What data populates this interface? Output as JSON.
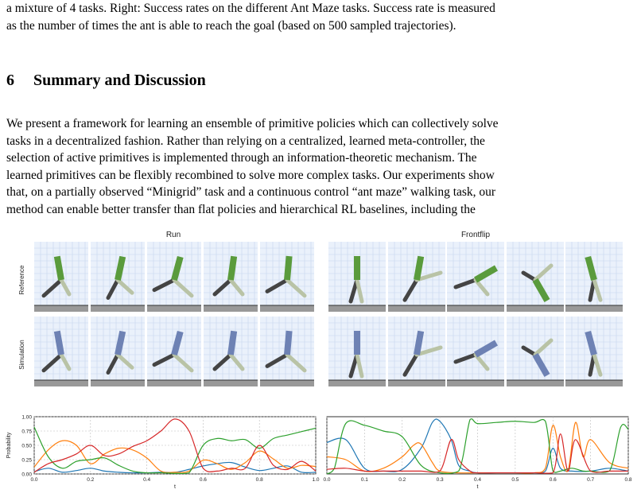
{
  "caption_lines": [
    "a mixture of 4 tasks. Right: Success rates on the different Ant Maze tasks. Success rate is measured",
    "as the number of times the ant is able to reach the goal (based on 500 sampled trajectories)."
  ],
  "section": {
    "number": "6",
    "title": "Summary and Discussion"
  },
  "paragraph_lines": [
    "We present a framework for learning an ensemble of primitive policies which can collectively solve",
    "tasks in a decentralized fashion. Rather than relying on a centralized, learned meta-controller, the",
    "selection of active primitives is implemented through an information-theoretic mechanism. The",
    "learned primitives can be flexibly recombined to solve more complex tasks. Our experiments show",
    "that, on a partially observed “Minigrid” task and a continuous control “ant maze” walking task, our",
    "method can enable better transfer than flat policies and hierarchical RL baselines, including the"
  ],
  "figure": {
    "panels": [
      {
        "title": "Run",
        "row_labels": [
          "Reference",
          "Simulation"
        ]
      },
      {
        "title": "Frontflip",
        "row_labels": []
      }
    ],
    "colors": {
      "reference": "#5a9b3c",
      "simulation": "#6e82b4",
      "dark": "#444444",
      "light": "#b9c3a6",
      "floor": "#999999"
    }
  },
  "chart_data": [
    {
      "type": "line",
      "title": "",
      "xlabel": "t",
      "ylabel": "Probability",
      "xlim": [
        0.0,
        1.0
      ],
      "ylim": [
        0.0,
        1.0
      ],
      "x_ticks": [
        "0.0",
        "0.2",
        "0.4",
        "0.6",
        "0.8",
        "1.0"
      ],
      "y_ticks": [
        "0.00",
        "0.25",
        "0.50",
        "0.75",
        "1.00"
      ],
      "grid": true,
      "series": [
        {
          "color": "#1f77b4",
          "x": [
            0,
            0.05,
            0.1,
            0.15,
            0.2,
            0.25,
            0.3,
            0.35,
            0.4,
            0.45,
            0.5,
            0.55,
            0.6,
            0.65,
            0.7,
            0.75,
            0.8,
            0.85,
            0.9,
            0.95,
            1.0
          ],
          "y": [
            0.04,
            0.1,
            0.03,
            0.06,
            0.1,
            0.05,
            0.03,
            0.02,
            0.02,
            0.03,
            0.03,
            0.08,
            0.14,
            0.18,
            0.2,
            0.12,
            0.06,
            0.1,
            0.14,
            0.03,
            0.03
          ]
        },
        {
          "color": "#ff7f0e",
          "x": [
            0,
            0.05,
            0.1,
            0.15,
            0.2,
            0.25,
            0.3,
            0.35,
            0.4,
            0.45,
            0.5,
            0.55,
            0.6,
            0.65,
            0.7,
            0.75,
            0.8,
            0.85,
            0.9,
            0.95,
            1.0
          ],
          "y": [
            0.12,
            0.42,
            0.58,
            0.5,
            0.18,
            0.35,
            0.45,
            0.42,
            0.28,
            0.05,
            0.03,
            0.05,
            0.24,
            0.18,
            0.08,
            0.2,
            0.4,
            0.26,
            0.1,
            0.15,
            0.13
          ]
        },
        {
          "color": "#2ca02c",
          "x": [
            0,
            0.05,
            0.1,
            0.15,
            0.2,
            0.25,
            0.3,
            0.35,
            0.4,
            0.45,
            0.5,
            0.55,
            0.6,
            0.65,
            0.7,
            0.75,
            0.8,
            0.85,
            0.9,
            0.95,
            1.0
          ],
          "y": [
            0.82,
            0.3,
            0.1,
            0.22,
            0.25,
            0.28,
            0.15,
            0.05,
            0.02,
            0.02,
            0.01,
            0.02,
            0.5,
            0.62,
            0.58,
            0.6,
            0.45,
            0.62,
            0.68,
            0.74,
            0.8
          ]
        },
        {
          "color": "#d62728",
          "x": [
            0,
            0.05,
            0.1,
            0.15,
            0.2,
            0.25,
            0.3,
            0.35,
            0.4,
            0.45,
            0.5,
            0.55,
            0.6,
            0.65,
            0.7,
            0.75,
            0.8,
            0.85,
            0.9,
            0.95,
            1.0
          ],
          "y": [
            0.03,
            0.18,
            0.25,
            0.35,
            0.5,
            0.32,
            0.35,
            0.48,
            0.58,
            0.75,
            0.96,
            0.75,
            0.1,
            0.05,
            0.1,
            0.1,
            0.5,
            0.15,
            0.08,
            0.22,
            0.05
          ]
        }
      ]
    },
    {
      "type": "line",
      "title": "",
      "xlabel": "t",
      "ylabel": "",
      "xlim": [
        0.0,
        0.8
      ],
      "ylim": [
        0.0,
        1.0
      ],
      "x_ticks": [
        "0.0",
        "0.1",
        "0.2",
        "0.3",
        "0.4",
        "0.5",
        "0.6",
        "0.7",
        "0.8"
      ],
      "y_ticks": [],
      "grid": true,
      "series": [
        {
          "color": "#1f77b4",
          "x": [
            0,
            0.05,
            0.1,
            0.15,
            0.2,
            0.25,
            0.28,
            0.3,
            0.33,
            0.35,
            0.38,
            0.4,
            0.45,
            0.5,
            0.55,
            0.58,
            0.6,
            0.62,
            0.65,
            0.7,
            0.75,
            0.8
          ],
          "y": [
            0.55,
            0.6,
            0.1,
            0.05,
            0.08,
            0.45,
            0.9,
            0.92,
            0.6,
            0.15,
            0.05,
            0.02,
            0.02,
            0.02,
            0.02,
            0.05,
            0.45,
            0.1,
            0.05,
            0.05,
            0.1,
            0.05
          ]
        },
        {
          "color": "#ff7f0e",
          "x": [
            0,
            0.05,
            0.1,
            0.15,
            0.2,
            0.23,
            0.25,
            0.28,
            0.3,
            0.35,
            0.4,
            0.45,
            0.5,
            0.55,
            0.58,
            0.6,
            0.62,
            0.64,
            0.66,
            0.68,
            0.7,
            0.75,
            0.8
          ],
          "y": [
            0.3,
            0.25,
            0.05,
            0.1,
            0.3,
            0.5,
            0.52,
            0.2,
            0.05,
            0.02,
            0.02,
            0.02,
            0.02,
            0.02,
            0.1,
            0.85,
            0.3,
            0.05,
            0.9,
            0.3,
            0.6,
            0.2,
            0.1
          ]
        },
        {
          "color": "#2ca02c",
          "x": [
            0,
            0.02,
            0.05,
            0.1,
            0.15,
            0.2,
            0.25,
            0.3,
            0.35,
            0.38,
            0.4,
            0.45,
            0.5,
            0.55,
            0.58,
            0.6,
            0.62,
            0.65,
            0.68,
            0.7,
            0.75,
            0.78,
            0.8
          ],
          "y": [
            0.0,
            0.1,
            0.88,
            0.85,
            0.75,
            0.65,
            0.15,
            0.02,
            0.05,
            0.95,
            0.88,
            0.9,
            0.92,
            0.9,
            0.92,
            0.05,
            0.05,
            0.1,
            0.05,
            0.05,
            0.05,
            0.82,
            0.78
          ]
        },
        {
          "color": "#d62728",
          "x": [
            0,
            0.05,
            0.1,
            0.15,
            0.2,
            0.25,
            0.3,
            0.33,
            0.35,
            0.38,
            0.4,
            0.45,
            0.5,
            0.55,
            0.6,
            0.62,
            0.64,
            0.66,
            0.7,
            0.75,
            0.8
          ],
          "y": [
            0.08,
            0.1,
            0.05,
            0.05,
            0.05,
            0.05,
            0.05,
            0.6,
            0.25,
            0.05,
            0.02,
            0.02,
            0.02,
            0.02,
            0.02,
            0.7,
            0.05,
            0.6,
            0.05,
            0.05,
            0.05
          ]
        }
      ]
    }
  ]
}
